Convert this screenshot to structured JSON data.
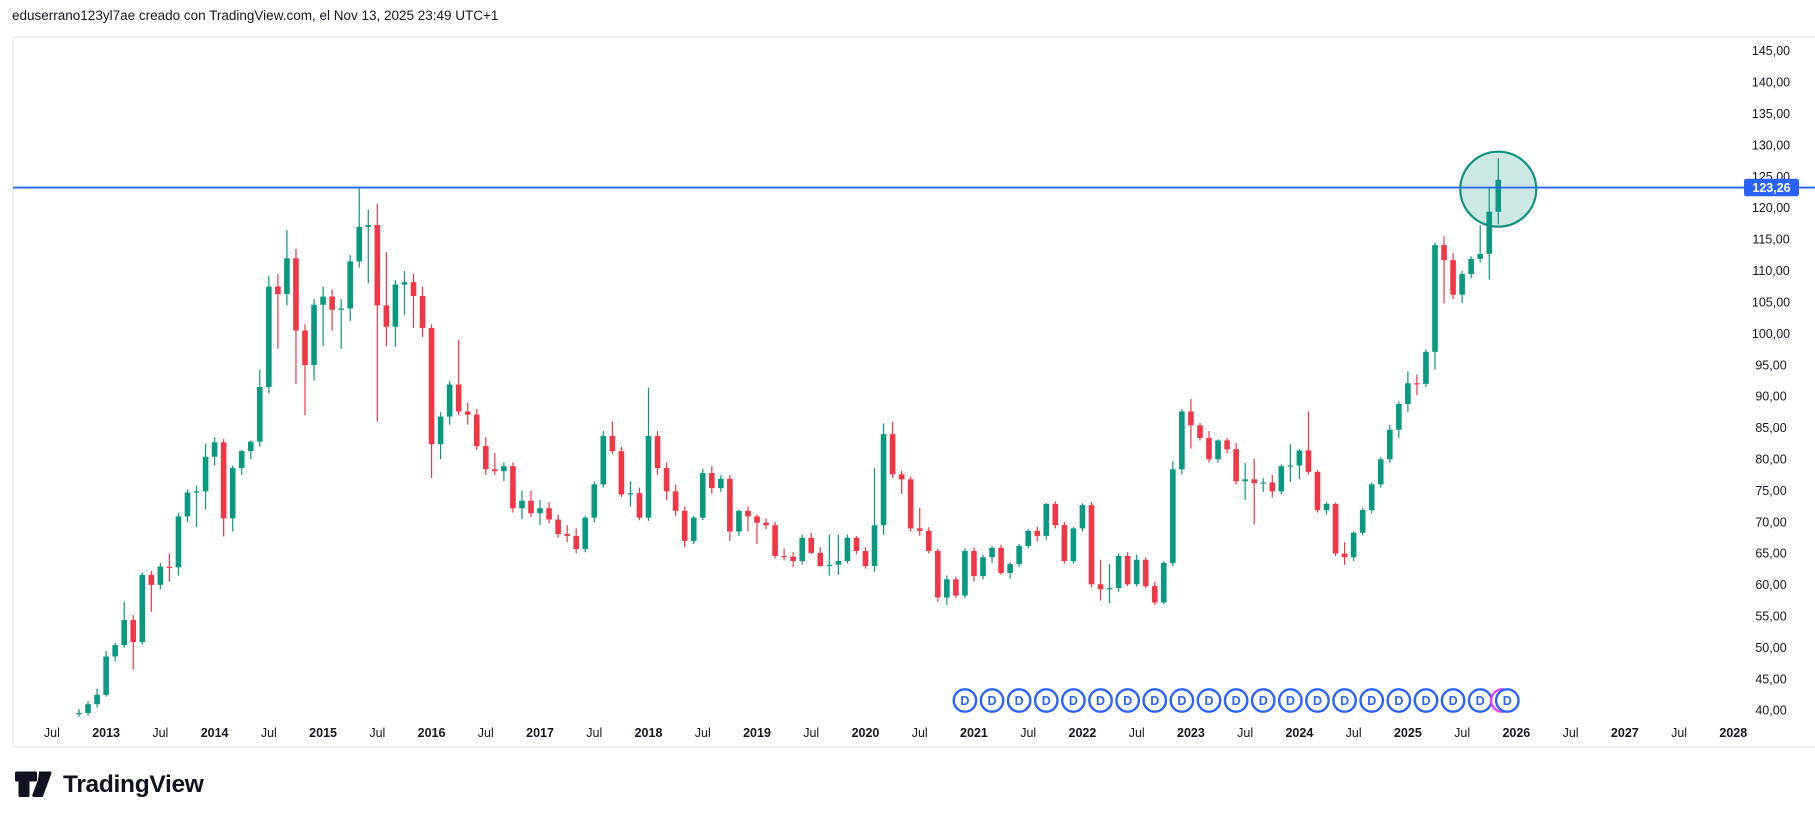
{
  "attribution": {
    "text": "eduserrano123yl7ae creado con TradingView.com, el Nov 13, 2025 23:49 UTC+1"
  },
  "watermark": {
    "brand": "TradingView"
  },
  "colors": {
    "up": "#089981",
    "down": "#F23645",
    "hline": "#2962FF",
    "axis_text": "#131722",
    "price_label_bg": "#2962FF",
    "price_label_text": "#FFFFFF",
    "dividend_ring": "#2962FF",
    "dividend_hidden_ring": "#E040FB",
    "ellipse_stroke": "#0b9181",
    "ellipse_fill": "rgba(17,148,130,0.22)",
    "widget_border": "#eef0f3"
  },
  "price_axis": {
    "min": 40,
    "max": 145,
    "step": 5,
    "decimal": "comma",
    "labels_example": "145,00"
  },
  "time_axis": {
    "years": [
      2013,
      2014,
      2015,
      2016,
      2017,
      2018,
      2019,
      2020,
      2021,
      2022,
      2023,
      2024,
      2025,
      2026,
      2027,
      2028
    ],
    "mid_year_label": "Jul"
  },
  "drawings": {
    "horizontal_line": {
      "price": 123.26,
      "axis_label": "123,26"
    },
    "ellipse_highlight": {
      "center_month": "2025-11",
      "center_price": 123.0,
      "note": "circle around latest candles breaking the line"
    }
  },
  "dividend_markers": {
    "letter": "D",
    "count": 21,
    "first_month": "2020-12",
    "interval_months": 3,
    "hidden_marker_behind_last": true
  },
  "chart_data": {
    "type": "candlestick",
    "timeframe": "monthly",
    "first_month": "2012-10",
    "title": "",
    "xlabel": "",
    "ylabel": "",
    "ylim": [
      40,
      145
    ],
    "grid": false,
    "candles": [
      [
        "2012-10",
        39.4,
        40.2,
        39.0,
        39.6
      ],
      [
        "2012-11",
        39.6,
        41.5,
        39.2,
        41.0
      ],
      [
        "2012-12",
        41.0,
        43.5,
        40.5,
        42.5
      ],
      [
        "2013-01",
        42.5,
        49.5,
        42.2,
        48.6
      ],
      [
        "2013-02",
        48.6,
        50.8,
        47.8,
        50.4
      ],
      [
        "2013-03",
        50.4,
        57.3,
        50.0,
        54.4
      ],
      [
        "2013-04",
        54.4,
        55.2,
        46.5,
        50.9
      ],
      [
        "2013-05",
        50.9,
        62.0,
        50.5,
        61.6
      ],
      [
        "2013-06",
        61.6,
        62.2,
        55.7,
        60.0
      ],
      [
        "2013-07",
        60.0,
        63.5,
        59.3,
        62.9
      ],
      [
        "2013-08",
        62.9,
        65.0,
        60.5,
        62.8
      ],
      [
        "2013-09",
        62.8,
        71.5,
        61.5,
        70.9
      ],
      [
        "2013-10",
        70.9,
        75.2,
        70.0,
        74.7
      ],
      [
        "2013-11",
        74.7,
        75.8,
        69.2,
        74.9
      ],
      [
        "2013-12",
        74.9,
        82.5,
        72.0,
        80.4
      ],
      [
        "2014-01",
        80.4,
        83.5,
        79.0,
        82.7
      ],
      [
        "2014-02",
        82.7,
        83.2,
        67.7,
        70.6
      ],
      [
        "2014-03",
        70.6,
        79.0,
        68.5,
        78.6
      ],
      [
        "2014-04",
        78.6,
        81.5,
        77.5,
        81.3
      ],
      [
        "2014-05",
        81.3,
        83.0,
        80.0,
        82.8
      ],
      [
        "2014-06",
        82.8,
        94.3,
        82.0,
        91.5
      ],
      [
        "2014-07",
        91.5,
        109.2,
        90.5,
        107.5
      ],
      [
        "2014-08",
        107.5,
        109.5,
        97.6,
        106.3
      ],
      [
        "2014-09",
        106.3,
        116.5,
        104.5,
        112.0
      ],
      [
        "2014-10",
        112.0,
        113.5,
        92.0,
        100.5
      ],
      [
        "2014-11",
        100.5,
        101.5,
        87.0,
        95.0
      ],
      [
        "2014-12",
        95.0,
        105.5,
        92.5,
        104.6
      ],
      [
        "2015-01",
        104.6,
        107.5,
        98.0,
        105.9
      ],
      [
        "2015-02",
        105.9,
        107.0,
        100.5,
        103.8
      ],
      [
        "2015-03",
        103.8,
        105.5,
        97.6,
        104.0
      ],
      [
        "2015-04",
        104.0,
        112.5,
        102.0,
        111.5
      ],
      [
        "2015-05",
        111.5,
        123.3,
        110.5,
        117.0
      ],
      [
        "2015-06",
        117.0,
        119.7,
        108.0,
        117.3
      ],
      [
        "2015-07",
        117.3,
        120.7,
        86.0,
        104.5
      ],
      [
        "2015-08",
        104.5,
        113.0,
        98.0,
        101.1
      ],
      [
        "2015-09",
        101.1,
        108.5,
        97.9,
        107.8
      ],
      [
        "2015-10",
        107.8,
        110.0,
        103.0,
        108.2
      ],
      [
        "2015-11",
        108.2,
        109.5,
        100.9,
        106.0
      ],
      [
        "2015-12",
        106.0,
        107.5,
        99.5,
        100.9
      ],
      [
        "2016-01",
        100.9,
        101.5,
        77.0,
        82.4
      ],
      [
        "2016-02",
        82.4,
        87.5,
        80.0,
        86.8
      ],
      [
        "2016-03",
        86.8,
        92.5,
        85.5,
        91.9
      ],
      [
        "2016-04",
        91.9,
        99.0,
        87.0,
        87.6
      ],
      [
        "2016-05",
        87.6,
        89.0,
        85.5,
        87.1
      ],
      [
        "2016-06",
        87.1,
        88.0,
        81.5,
        82.1
      ],
      [
        "2016-07",
        82.1,
        83.5,
        77.5,
        78.4
      ],
      [
        "2016-08",
        78.4,
        81.0,
        77.5,
        78.1
      ],
      [
        "2016-09",
        78.1,
        79.5,
        76.5,
        78.9
      ],
      [
        "2016-10",
        78.9,
        79.5,
        71.5,
        72.2
      ],
      [
        "2016-11",
        72.2,
        75.0,
        70.5,
        73.4
      ],
      [
        "2016-12",
        73.4,
        75.0,
        70.8,
        71.4
      ],
      [
        "2017-01",
        71.4,
        73.5,
        69.5,
        72.2
      ],
      [
        "2017-02",
        72.2,
        73.2,
        69.8,
        70.4
      ],
      [
        "2017-03",
        70.4,
        71.2,
        67.5,
        68.1
      ],
      [
        "2017-04",
        68.1,
        69.5,
        66.8,
        67.8
      ],
      [
        "2017-05",
        67.8,
        69.0,
        65.0,
        65.7
      ],
      [
        "2017-06",
        65.7,
        71.0,
        65.2,
        70.7
      ],
      [
        "2017-07",
        70.7,
        76.5,
        70.0,
        76.0
      ],
      [
        "2017-08",
        76.0,
        84.5,
        75.5,
        83.7
      ],
      [
        "2017-09",
        83.7,
        86.0,
        80.8,
        81.3
      ],
      [
        "2017-10",
        81.3,
        82.0,
        74.0,
        74.4
      ],
      [
        "2017-11",
        74.4,
        76.5,
        72.5,
        74.6
      ],
      [
        "2017-12",
        74.6,
        75.5,
        70.3,
        70.7
      ],
      [
        "2018-01",
        70.7,
        91.4,
        70.2,
        83.7
      ],
      [
        "2018-02",
        83.7,
        84.5,
        77.5,
        78.6
      ],
      [
        "2018-03",
        78.6,
        79.5,
        73.5,
        74.9
      ],
      [
        "2018-04",
        74.9,
        76.0,
        71.0,
        71.8
      ],
      [
        "2018-05",
        71.8,
        72.5,
        66.0,
        67.0
      ],
      [
        "2018-06",
        67.0,
        71.0,
        66.5,
        70.7
      ],
      [
        "2018-07",
        70.7,
        78.5,
        70.3,
        77.8
      ],
      [
        "2018-08",
        77.8,
        78.9,
        74.5,
        75.4
      ],
      [
        "2018-09",
        75.4,
        77.5,
        74.8,
        76.9
      ],
      [
        "2018-10",
        76.9,
        77.5,
        67.0,
        68.5
      ],
      [
        "2018-11",
        68.5,
        72.0,
        67.8,
        71.8
      ],
      [
        "2018-12",
        71.8,
        72.5,
        68.5,
        70.9
      ],
      [
        "2019-01",
        70.9,
        71.2,
        66.5,
        69.9
      ],
      [
        "2019-02",
        69.9,
        70.6,
        68.9,
        69.5
      ],
      [
        "2019-03",
        69.5,
        70.0,
        64.2,
        64.6
      ],
      [
        "2019-04",
        64.6,
        65.8,
        63.9,
        64.5
      ],
      [
        "2019-05",
        64.5,
        65.2,
        62.8,
        63.8
      ],
      [
        "2019-06",
        63.8,
        68.0,
        63.2,
        67.5
      ],
      [
        "2019-07",
        67.5,
        68.3,
        64.9,
        65.1
      ],
      [
        "2019-08",
        65.1,
        66.0,
        62.9,
        63.0
      ],
      [
        "2019-09",
        63.0,
        68.0,
        61.5,
        63.2
      ],
      [
        "2019-10",
        63.2,
        68.0,
        61.6,
        63.8
      ],
      [
        "2019-11",
        63.8,
        68.0,
        63.4,
        67.5
      ],
      [
        "2019-12",
        67.5,
        67.8,
        64.9,
        65.4
      ],
      [
        "2020-01",
        65.4,
        66.0,
        62.6,
        63.0
      ],
      [
        "2020-02",
        63.0,
        78.6,
        62.1,
        69.5
      ],
      [
        "2020-03",
        69.5,
        85.7,
        68.0,
        84.0
      ],
      [
        "2020-04",
        84.0,
        86.0,
        77.0,
        77.6
      ],
      [
        "2020-05",
        77.6,
        78.2,
        74.5,
        76.8
      ],
      [
        "2020-06",
        76.8,
        77.2,
        68.5,
        69.0
      ],
      [
        "2020-07",
        69.0,
        72.3,
        67.8,
        68.6
      ],
      [
        "2020-08",
        68.6,
        69.2,
        65.0,
        65.4
      ],
      [
        "2020-09",
        65.4,
        65.8,
        57.3,
        58.0
      ],
      [
        "2020-10",
        58.0,
        61.5,
        56.8,
        60.9
      ],
      [
        "2020-11",
        60.9,
        61.3,
        57.9,
        58.3
      ],
      [
        "2020-12",
        58.3,
        65.8,
        57.9,
        65.4
      ],
      [
        "2021-01",
        65.4,
        66.0,
        60.5,
        61.4
      ],
      [
        "2021-02",
        61.4,
        64.8,
        60.9,
        64.4
      ],
      [
        "2021-03",
        64.4,
        66.2,
        63.5,
        65.9
      ],
      [
        "2021-04",
        65.9,
        66.4,
        61.6,
        61.9
      ],
      [
        "2021-05",
        61.9,
        63.6,
        61.0,
        63.3
      ],
      [
        "2021-06",
        63.3,
        66.5,
        62.9,
        66.2
      ],
      [
        "2021-07",
        66.2,
        68.9,
        65.8,
        68.6
      ],
      [
        "2021-08",
        68.6,
        69.3,
        66.9,
        67.8
      ],
      [
        "2021-09",
        67.8,
        73.0,
        67.2,
        72.9
      ],
      [
        "2021-10",
        72.9,
        73.3,
        69.0,
        69.5
      ],
      [
        "2021-11",
        69.5,
        70.0,
        63.4,
        63.8
      ],
      [
        "2021-12",
        63.8,
        69.2,
        63.4,
        69.0
      ],
      [
        "2022-01",
        69.0,
        73.0,
        68.5,
        72.7
      ],
      [
        "2022-02",
        72.7,
        73.2,
        59.6,
        60.1
      ],
      [
        "2022-03",
        60.1,
        64.0,
        57.5,
        59.3
      ],
      [
        "2022-04",
        59.3,
        63.3,
        57.1,
        59.5
      ],
      [
        "2022-05",
        59.5,
        65.0,
        58.9,
        64.6
      ],
      [
        "2022-06",
        64.6,
        65.2,
        59.8,
        60.1
      ],
      [
        "2022-07",
        60.1,
        64.8,
        59.7,
        64.0
      ],
      [
        "2022-08",
        64.0,
        64.4,
        59.5,
        59.8
      ],
      [
        "2022-09",
        59.8,
        60.5,
        56.8,
        57.2
      ],
      [
        "2022-10",
        57.2,
        63.8,
        56.9,
        63.5
      ],
      [
        "2022-11",
        63.5,
        79.7,
        63.0,
        78.4
      ],
      [
        "2022-12",
        78.4,
        88.0,
        77.6,
        87.6
      ],
      [
        "2023-01",
        87.6,
        89.6,
        81.7,
        85.4
      ],
      [
        "2023-02",
        85.4,
        85.8,
        83.0,
        83.4
      ],
      [
        "2023-03",
        83.4,
        84.5,
        79.5,
        80.0
      ],
      [
        "2023-04",
        80.0,
        83.2,
        79.4,
        83.0
      ],
      [
        "2023-05",
        83.0,
        83.4,
        80.9,
        81.6
      ],
      [
        "2023-06",
        81.6,
        82.6,
        76.0,
        76.5
      ],
      [
        "2023-07",
        76.5,
        79.4,
        73.5,
        76.8
      ],
      [
        "2023-08",
        76.8,
        80.1,
        69.6,
        76.2
      ],
      [
        "2023-09",
        76.2,
        77.0,
        74.8,
        76.3
      ],
      [
        "2023-10",
        76.3,
        77.5,
        73.9,
        74.9
      ],
      [
        "2023-11",
        74.9,
        79.2,
        74.4,
        78.9
      ],
      [
        "2023-12",
        78.9,
        82.4,
        76.4,
        79.0
      ],
      [
        "2024-01",
        79.0,
        81.6,
        76.8,
        81.4
      ],
      [
        "2024-02",
        81.4,
        87.6,
        77.6,
        78.0
      ],
      [
        "2024-03",
        78.0,
        78.3,
        71.5,
        71.9
      ],
      [
        "2024-04",
        71.9,
        73.2,
        71.2,
        72.9
      ],
      [
        "2024-05",
        72.9,
        73.1,
        64.6,
        65.0
      ],
      [
        "2024-06",
        65.0,
        66.8,
        63.2,
        64.4
      ],
      [
        "2024-07",
        64.4,
        68.5,
        63.8,
        68.3
      ],
      [
        "2024-08",
        68.3,
        72.2,
        67.9,
        71.9
      ],
      [
        "2024-09",
        71.9,
        76.3,
        71.4,
        76.0
      ],
      [
        "2024-10",
        76.0,
        80.3,
        75.5,
        80.0
      ],
      [
        "2024-11",
        80.0,
        85.5,
        79.4,
        84.7
      ],
      [
        "2024-12",
        84.7,
        89.2,
        83.4,
        88.8
      ],
      [
        "2025-01",
        88.8,
        94.0,
        87.5,
        92.1
      ],
      [
        "2025-02",
        92.1,
        93.5,
        90.2,
        92.0
      ],
      [
        "2025-03",
        92.0,
        97.5,
        91.5,
        97.1
      ],
      [
        "2025-04",
        97.1,
        114.5,
        94.3,
        114.1
      ],
      [
        "2025-05",
        114.1,
        115.5,
        104.8,
        111.7
      ],
      [
        "2025-06",
        111.7,
        112.8,
        105.5,
        106.2
      ],
      [
        "2025-07",
        106.2,
        110.0,
        104.9,
        109.5
      ],
      [
        "2025-08",
        109.5,
        112.3,
        108.8,
        111.9
      ],
      [
        "2025-09",
        111.9,
        117.3,
        111.3,
        112.7
      ],
      [
        "2025-10",
        112.7,
        123.3,
        108.6,
        119.4
      ],
      [
        "2025-11",
        119.4,
        127.9,
        117.4,
        124.5
      ]
    ]
  }
}
